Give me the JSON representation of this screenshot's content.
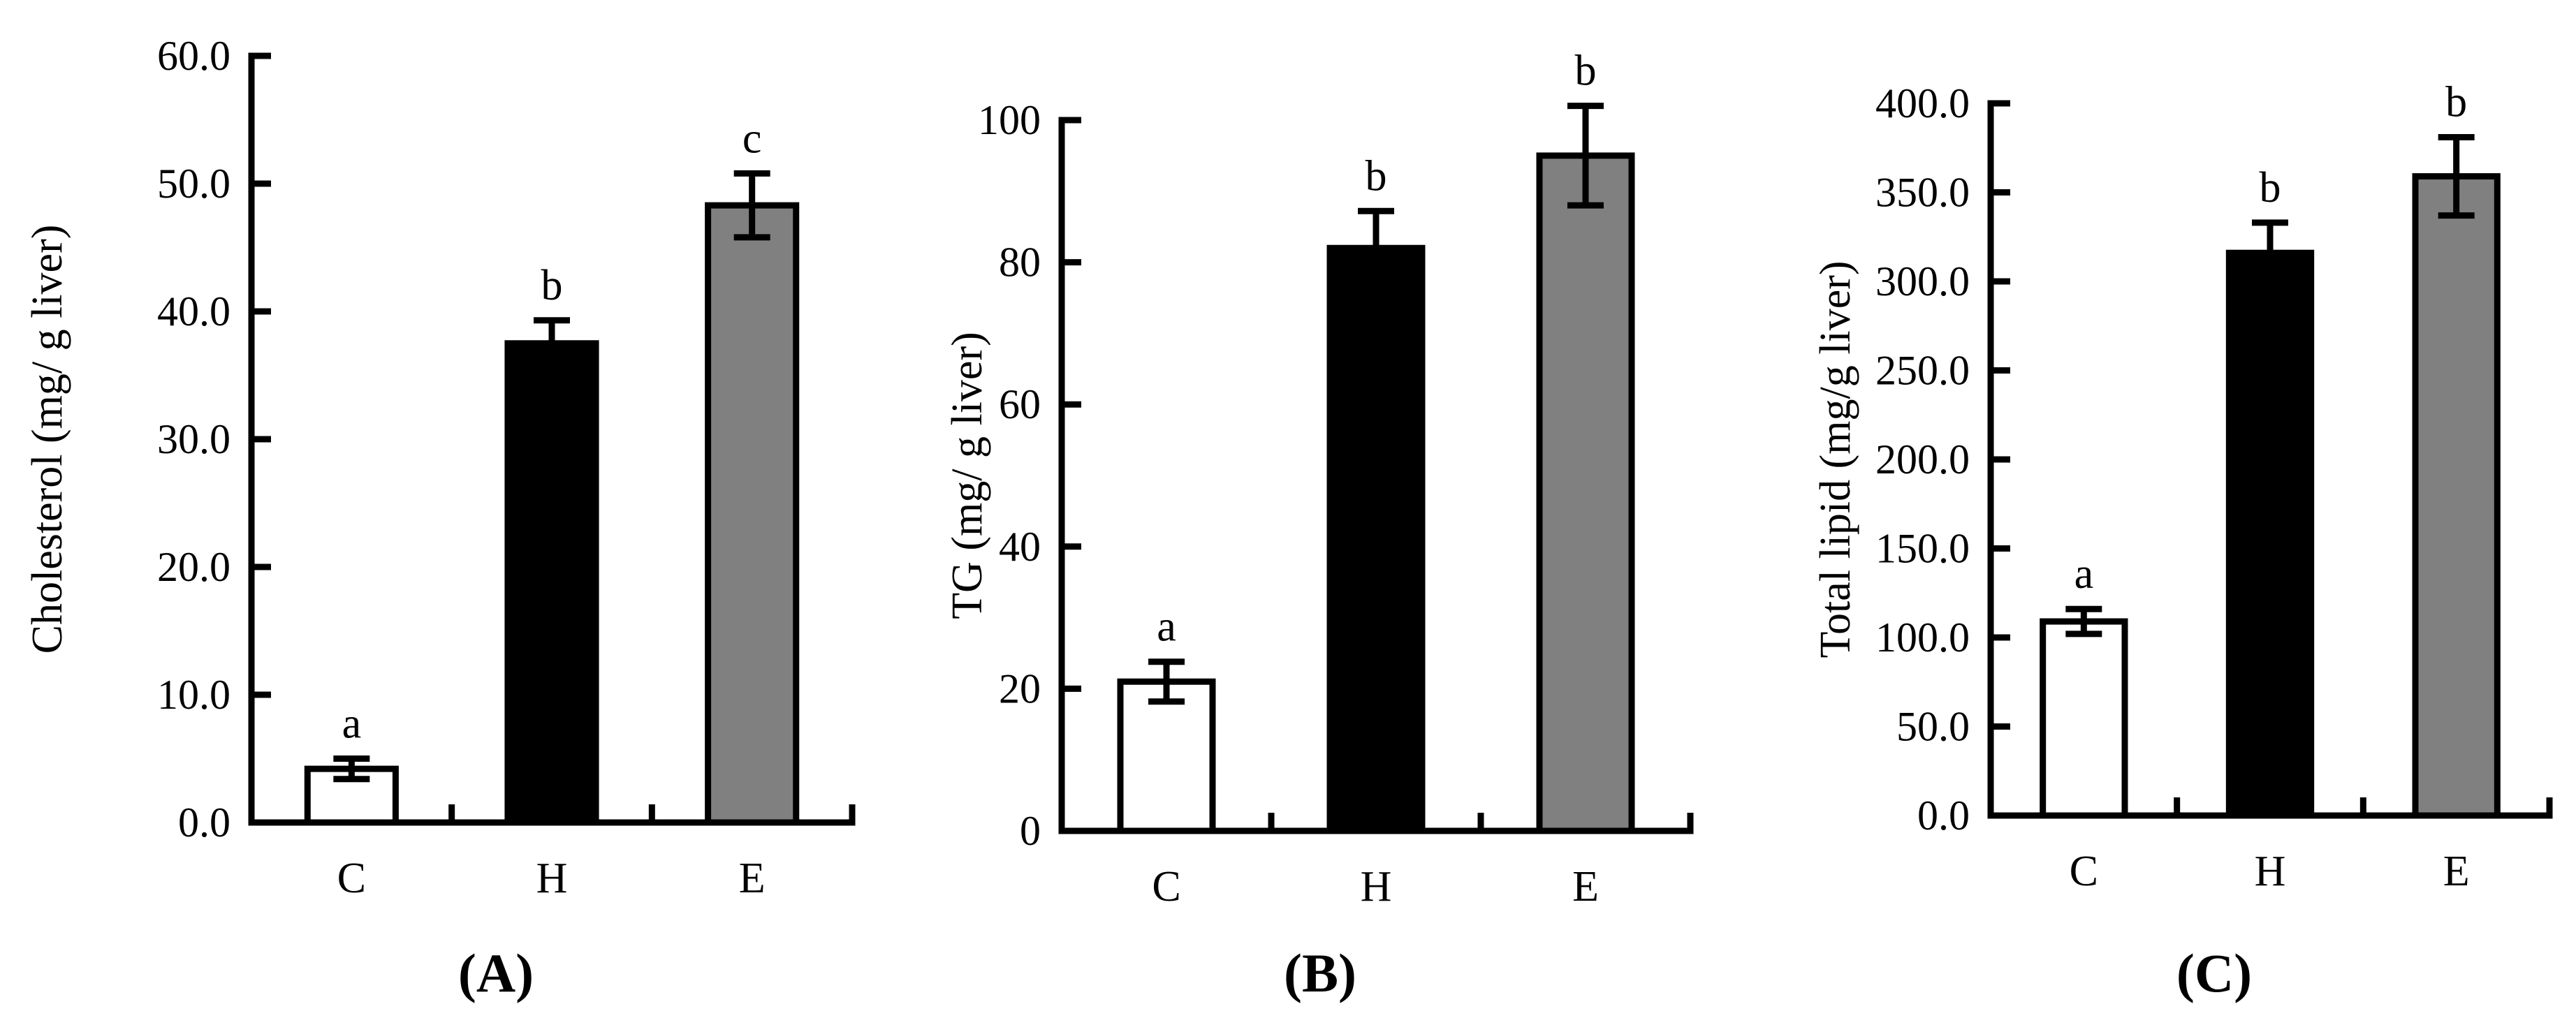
{
  "chart_data": [
    {
      "type": "bar",
      "panel_label": "(A)",
      "ylabel": "Cholesterol (mg/ g liver)",
      "ylim": [
        0,
        60
      ],
      "yticks": [
        "0.0",
        "10.0",
        "20.0",
        "30.0",
        "40.0",
        "50.0",
        "60.0"
      ],
      "categories": [
        "C",
        "H",
        "E"
      ],
      "values": [
        4.2,
        37.5,
        48.3
      ],
      "errors": [
        0.8,
        1.8,
        2.5
      ],
      "significance": [
        "a",
        "b",
        "c"
      ],
      "colors": [
        "#ffffff",
        "#000000",
        "#808080"
      ]
    },
    {
      "type": "bar",
      "panel_label": "(B)",
      "ylabel": "TG (mg/ g liver)",
      "ylim": [
        0,
        100
      ],
      "yticks": [
        "0",
        "20",
        "40",
        "60",
        "80",
        "100"
      ],
      "categories": [
        "C",
        "H",
        "E"
      ],
      "values": [
        21,
        82,
        95
      ],
      "errors": [
        2.8,
        5.2,
        7
      ],
      "significance": [
        "a",
        "b",
        "b"
      ],
      "colors": [
        "#ffffff",
        "#000000",
        "#808080"
      ]
    },
    {
      "type": "bar",
      "panel_label": "(C)",
      "ylabel": "Total lipid (mg/g liver)",
      "ylim": [
        0,
        400
      ],
      "yticks": [
        "0.0",
        "50.0",
        "100.0",
        "150.0",
        "200.0",
        "250.0",
        "300.0",
        "350.0",
        "400.0"
      ],
      "categories": [
        "C",
        "H",
        "E"
      ],
      "values": [
        109,
        316,
        359
      ],
      "errors": [
        7,
        17,
        22
      ],
      "significance": [
        "a",
        "b",
        "b"
      ],
      "colors": [
        "#ffffff",
        "#000000",
        "#808080"
      ]
    }
  ]
}
